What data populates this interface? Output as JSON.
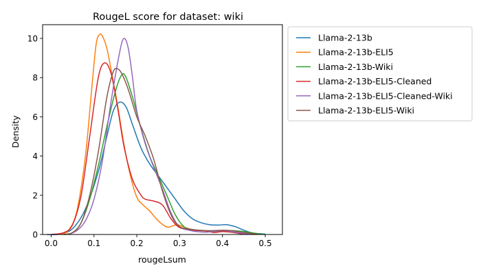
{
  "chart_data": {
    "type": "line",
    "title": "RougeL score for dataset: wiki",
    "xlabel": "rougeLsum",
    "ylabel": "Density",
    "xlim": [
      -0.02,
      0.54
    ],
    "ylim": [
      0,
      10.7
    ],
    "xticks": [
      0.0,
      0.1,
      0.2,
      0.3,
      0.4,
      0.5
    ],
    "xtick_labels": [
      "0.0",
      "0.1",
      "0.2",
      "0.3",
      "0.4",
      "0.5"
    ],
    "yticks": [
      0,
      2,
      4,
      6,
      8,
      10
    ],
    "ytick_labels": [
      "0",
      "2",
      "4",
      "6",
      "8",
      "10"
    ],
    "grid": false,
    "legend_position": "outside-right-top",
    "series": [
      {
        "name": "Llama-2-13b",
        "color": "#1f77b4",
        "points": [
          [
            -0.01,
            0.0
          ],
          [
            0.02,
            0.02
          ],
          [
            0.05,
            0.3
          ],
          [
            0.08,
            1.3
          ],
          [
            0.11,
            3.2
          ],
          [
            0.13,
            5.0
          ],
          [
            0.145,
            6.3
          ],
          [
            0.16,
            6.75
          ],
          [
            0.175,
            6.5
          ],
          [
            0.19,
            5.6
          ],
          [
            0.21,
            4.4
          ],
          [
            0.23,
            3.6
          ],
          [
            0.25,
            3.0
          ],
          [
            0.27,
            2.4
          ],
          [
            0.29,
            1.8
          ],
          [
            0.31,
            1.2
          ],
          [
            0.33,
            0.8
          ],
          [
            0.35,
            0.6
          ],
          [
            0.37,
            0.5
          ],
          [
            0.39,
            0.48
          ],
          [
            0.41,
            0.5
          ],
          [
            0.43,
            0.4
          ],
          [
            0.45,
            0.22
          ],
          [
            0.47,
            0.08
          ],
          [
            0.5,
            0.02
          ]
        ]
      },
      {
        "name": "Llama-2-13b-ELI5",
        "color": "#ff7f0e",
        "points": [
          [
            0.02,
            0.0
          ],
          [
            0.04,
            0.2
          ],
          [
            0.06,
            1.2
          ],
          [
            0.08,
            4.0
          ],
          [
            0.095,
            7.5
          ],
          [
            0.105,
            9.7
          ],
          [
            0.113,
            10.2
          ],
          [
            0.12,
            10.1
          ],
          [
            0.13,
            9.5
          ],
          [
            0.14,
            8.4
          ],
          [
            0.155,
            6.6
          ],
          [
            0.17,
            4.6
          ],
          [
            0.185,
            3.0
          ],
          [
            0.2,
            1.9
          ],
          [
            0.215,
            1.5
          ],
          [
            0.23,
            1.2
          ],
          [
            0.25,
            0.7
          ],
          [
            0.27,
            0.38
          ],
          [
            0.285,
            0.45
          ],
          [
            0.295,
            0.5
          ],
          [
            0.31,
            0.38
          ],
          [
            0.33,
            0.25
          ],
          [
            0.36,
            0.18
          ],
          [
            0.38,
            0.12
          ],
          [
            0.4,
            0.15
          ],
          [
            0.42,
            0.12
          ],
          [
            0.45,
            0.05
          ],
          [
            0.48,
            0.0
          ]
        ]
      },
      {
        "name": "Llama-2-13b-Wiki",
        "color": "#2ca02c",
        "points": [
          [
            0.03,
            0.0
          ],
          [
            0.05,
            0.1
          ],
          [
            0.07,
            0.6
          ],
          [
            0.09,
            1.8
          ],
          [
            0.11,
            3.5
          ],
          [
            0.13,
            5.5
          ],
          [
            0.15,
            7.3
          ],
          [
            0.165,
            8.15
          ],
          [
            0.175,
            8.0
          ],
          [
            0.19,
            7.0
          ],
          [
            0.21,
            5.4
          ],
          [
            0.23,
            4.0
          ],
          [
            0.25,
            3.0
          ],
          [
            0.27,
            2.0
          ],
          [
            0.29,
            1.0
          ],
          [
            0.31,
            0.4
          ],
          [
            0.33,
            0.25
          ],
          [
            0.36,
            0.2
          ],
          [
            0.38,
            0.15
          ],
          [
            0.4,
            0.18
          ],
          [
            0.42,
            0.2
          ],
          [
            0.45,
            0.15
          ],
          [
            0.48,
            0.05
          ],
          [
            0.5,
            0.0
          ]
        ]
      },
      {
        "name": "Llama-2-13b-ELI5-Cleaned",
        "color": "#d62728",
        "points": [
          [
            0.0,
            0.0
          ],
          [
            0.03,
            0.1
          ],
          [
            0.05,
            0.5
          ],
          [
            0.07,
            2.0
          ],
          [
            0.09,
            5.0
          ],
          [
            0.11,
            8.0
          ],
          [
            0.125,
            8.75
          ],
          [
            0.14,
            8.2
          ],
          [
            0.155,
            6.5
          ],
          [
            0.17,
            4.5
          ],
          [
            0.19,
            2.8
          ],
          [
            0.21,
            2.0
          ],
          [
            0.22,
            1.8
          ],
          [
            0.24,
            1.7
          ],
          [
            0.26,
            1.5
          ],
          [
            0.28,
            0.8
          ],
          [
            0.3,
            0.35
          ],
          [
            0.33,
            0.22
          ],
          [
            0.36,
            0.18
          ],
          [
            0.38,
            0.1
          ],
          [
            0.4,
            0.15
          ],
          [
            0.42,
            0.12
          ],
          [
            0.44,
            0.05
          ],
          [
            0.46,
            0.0
          ]
        ]
      },
      {
        "name": "Llama-2-13b-ELI5-Cleaned-Wiki",
        "color": "#9467bd",
        "points": [
          [
            0.04,
            0.0
          ],
          [
            0.06,
            0.2
          ],
          [
            0.08,
            0.7
          ],
          [
            0.1,
            1.8
          ],
          [
            0.12,
            3.8
          ],
          [
            0.14,
            6.8
          ],
          [
            0.16,
            9.3
          ],
          [
            0.17,
            10.0
          ],
          [
            0.18,
            9.5
          ],
          [
            0.19,
            8.0
          ],
          [
            0.2,
            6.3
          ],
          [
            0.22,
            4.6
          ],
          [
            0.24,
            3.4
          ],
          [
            0.26,
            2.3
          ],
          [
            0.28,
            1.1
          ],
          [
            0.3,
            0.4
          ],
          [
            0.33,
            0.18
          ],
          [
            0.36,
            0.12
          ],
          [
            0.38,
            0.15
          ],
          [
            0.4,
            0.2
          ],
          [
            0.42,
            0.15
          ],
          [
            0.45,
            0.05
          ],
          [
            0.47,
            0.0
          ]
        ]
      },
      {
        "name": "Llama-2-13b-ELI5-Wiki",
        "color": "#8c564b",
        "points": [
          [
            0.03,
            0.0
          ],
          [
            0.05,
            0.1
          ],
          [
            0.07,
            0.6
          ],
          [
            0.09,
            2.0
          ],
          [
            0.11,
            4.2
          ],
          [
            0.13,
            7.0
          ],
          [
            0.145,
            8.3
          ],
          [
            0.155,
            8.45
          ],
          [
            0.165,
            8.2
          ],
          [
            0.18,
            7.4
          ],
          [
            0.2,
            6.0
          ],
          [
            0.22,
            5.0
          ],
          [
            0.24,
            3.8
          ],
          [
            0.26,
            2.2
          ],
          [
            0.28,
            1.0
          ],
          [
            0.3,
            0.4
          ],
          [
            0.33,
            0.25
          ],
          [
            0.36,
            0.2
          ],
          [
            0.38,
            0.2
          ],
          [
            0.4,
            0.22
          ],
          [
            0.42,
            0.2
          ],
          [
            0.45,
            0.1
          ],
          [
            0.48,
            0.02
          ]
        ]
      }
    ]
  }
}
